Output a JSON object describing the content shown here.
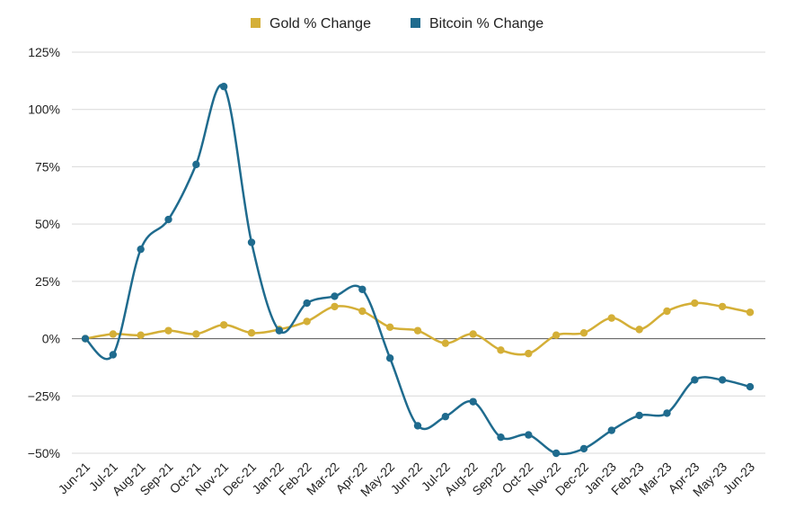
{
  "chart_data": {
    "type": "line",
    "x": [
      "Jun-21",
      "Jul-21",
      "Aug-21",
      "Sep-21",
      "Oct-21",
      "Nov-21",
      "Dec-21",
      "Jan-22",
      "Feb-22",
      "Mar-22",
      "Apr-22",
      "May-22",
      "Jun-22",
      "Jul-22",
      "Aug-22",
      "Sep-22",
      "Oct-22",
      "Nov-22",
      "Dec-22",
      "Jan-23",
      "Feb-23",
      "Mar-23",
      "Apr-23",
      "May-23",
      "Jun-23"
    ],
    "y_ticks": [
      {
        "value": 125,
        "label": "125%"
      },
      {
        "value": 100,
        "label": "100%"
      },
      {
        "value": 75,
        "label": "75%"
      },
      {
        "value": 50,
        "label": "50%"
      },
      {
        "value": 25,
        "label": "25%"
      },
      {
        "value": 0,
        "label": "0%"
      },
      {
        "value": -25,
        "label": "−25%"
      },
      {
        "value": -50,
        "label": "−50%"
      }
    ],
    "ylim": [
      -50,
      125
    ],
    "grid": true,
    "legend_position": "top-center",
    "series": [
      {
        "name": "Gold % Change",
        "color": "#D4AF37",
        "values": [
          0,
          2,
          1.5,
          3.5,
          2,
          6,
          2.5,
          4,
          7.5,
          14,
          12,
          5,
          3.5,
          -2,
          2,
          -5,
          -6.5,
          1.5,
          2.5,
          9,
          4,
          12,
          15.5,
          14,
          11.5
        ]
      },
      {
        "name": "Bitcoin % Change",
        "color": "#1F6B8E",
        "values": [
          0,
          -7,
          39,
          52,
          76,
          110,
          42,
          3.5,
          15.5,
          18.5,
          21.5,
          -8.5,
          -38,
          -34,
          -27.5,
          -43,
          -42,
          -50,
          -48,
          -40,
          -33.5,
          -32.5,
          -18,
          -18,
          -21
        ]
      }
    ]
  }
}
